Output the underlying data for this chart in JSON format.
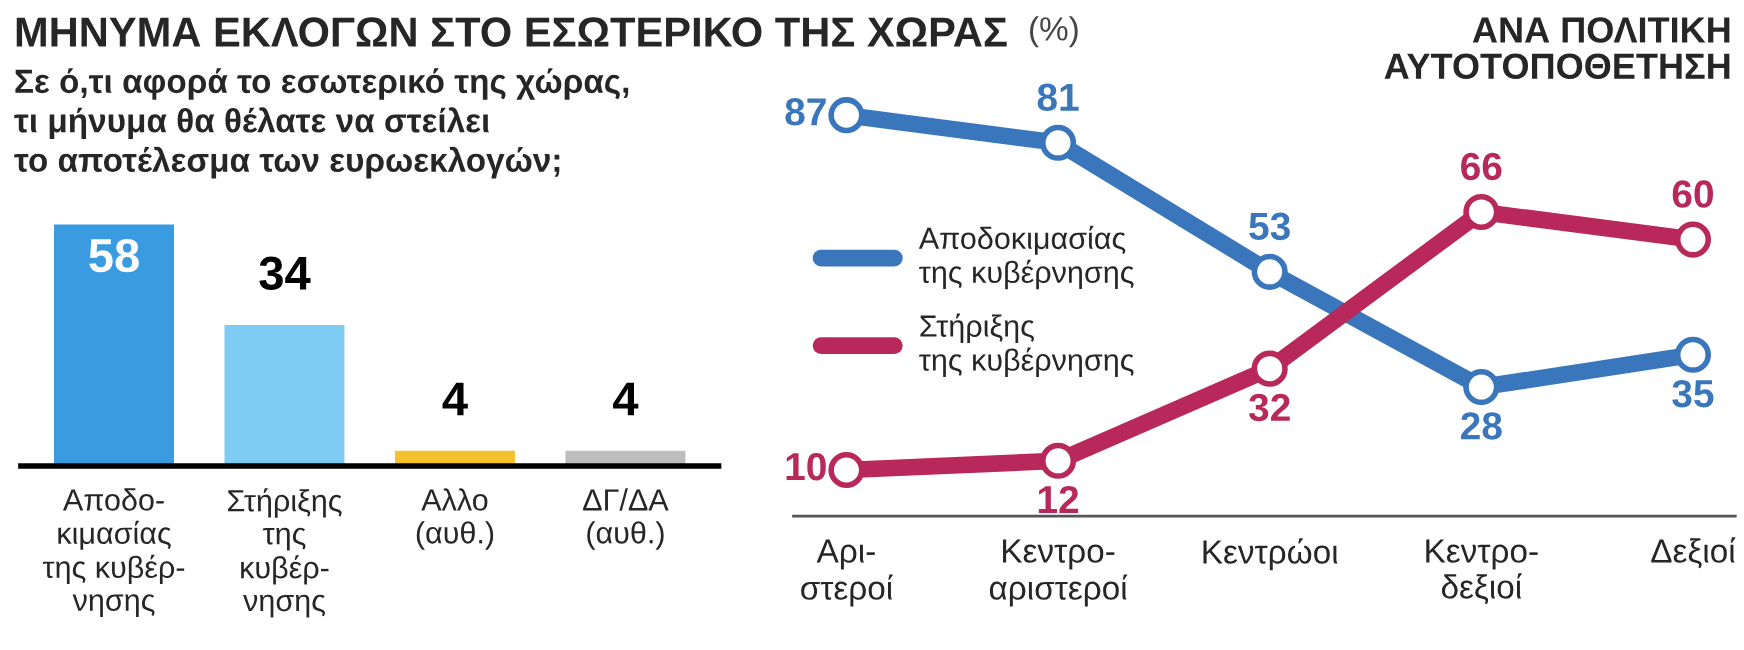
{
  "chart_data": [
    {
      "type": "bar",
      "title": "ΜΗΝΥΜΑ ΕΚΛΟΓΩΝ ΣΤΟ ΕΣΩΤΕΡΙΚΟ ΤΗΣ ΧΩΡΑΣ",
      "subtitle": "Σε ό,τι αφορά το εσωτερικό της χώρας,\nτι μήνυμα θα θέλατε να στείλει\nτο αποτέλεσμα των ευρωεκλογών;",
      "annotations": [
        "(%)"
      ],
      "categories": [
        "Αποδο-\nκιμασίας\nτης κυβέρ-\nνησης",
        "Στήριξης\nτης\nκυβέρ-\nνησης",
        "Αλλο\n(αυθ.)",
        "ΔΓ/ΔΑ\n(αυθ.)"
      ],
      "values": [
        58,
        34,
        4,
        4
      ],
      "colors": [
        "#3a9be0",
        "#7ecbf3",
        "#f5c22e",
        "#bdbdbd"
      ],
      "data_labels": true
    },
    {
      "type": "line",
      "title": "ΑΝΑ ΠΟΛΙΤΙΚΗ\nΑΥΤΟΤΟΠΟΘΕΤΗΣΗ",
      "categories": [
        "Αρι-\nστεροί",
        "Κεντρο-\nαριστεροί",
        "Κεντρώοι",
        "Κεντρο-\nδεξιοί",
        "Δεξιοί"
      ],
      "series": [
        {
          "name": "Αποδοκιμασίας\nτης κυβέρνησης",
          "color": "#3a76bb",
          "values": [
            87,
            81,
            53,
            28,
            35
          ]
        },
        {
          "name": "Στήριξης\nτης κυβέρνησης",
          "color": "#b8285a",
          "values": [
            10,
            12,
            32,
            66,
            60
          ]
        }
      ],
      "marker": "circle",
      "line_style": "solid",
      "legend": "left",
      "data_labels": true
    }
  ]
}
